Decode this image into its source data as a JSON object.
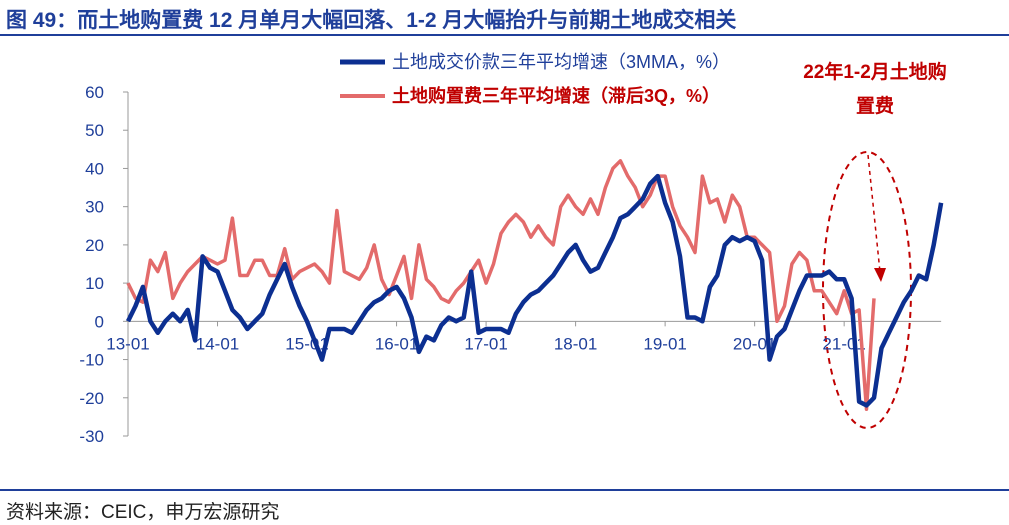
{
  "chart_data": {
    "type": "line",
    "title": "图 49：而土地购置费 12 月单月大幅回落、1-2 月大幅抬升与前期土地成交相关",
    "source": "资料来源：CEIC，申万宏源研究",
    "annotation": "22年1-2月土地购置费",
    "categories": [
      "13-01",
      null,
      null,
      null,
      null,
      null,
      null,
      null,
      null,
      null,
      null,
      null,
      "14-01",
      null,
      null,
      null,
      null,
      null,
      null,
      null,
      null,
      null,
      null,
      null,
      "15-01",
      null,
      null,
      null,
      null,
      null,
      null,
      null,
      null,
      null,
      null,
      null,
      "16-01",
      null,
      null,
      null,
      null,
      null,
      null,
      null,
      null,
      null,
      null,
      null,
      "17-01",
      null,
      null,
      null,
      null,
      null,
      null,
      null,
      null,
      null,
      null,
      null,
      "18-01",
      null,
      null,
      null,
      null,
      null,
      null,
      null,
      null,
      null,
      null,
      null,
      "19-01",
      null,
      null,
      null,
      null,
      null,
      null,
      null,
      null,
      null,
      null,
      null,
      "20-01",
      null,
      null,
      null,
      null,
      null,
      null,
      null,
      null,
      null,
      null,
      null,
      "21-01",
      null,
      null,
      null,
      null,
      null,
      null,
      null,
      null,
      null,
      null,
      null,
      null,
      null
    ],
    "series": [
      {
        "name": "土地成交价款三年平均增速（3MMA，%）",
        "color": "#0c2f91",
        "values": [
          0,
          4,
          9,
          0,
          -3,
          0,
          2,
          0,
          3,
          -5,
          17,
          14,
          13,
          8,
          3,
          1,
          -2,
          0,
          2,
          7,
          11,
          15,
          9,
          4,
          0,
          -5,
          -10,
          -2,
          -2,
          -2,
          -3,
          0,
          3,
          5,
          6,
          8,
          9,
          6,
          1,
          -8,
          -4,
          -5,
          -1,
          1,
          0,
          1,
          13,
          -3,
          -2,
          -2,
          -2,
          -3,
          2,
          5,
          7,
          8,
          10,
          12,
          15,
          18,
          20,
          16,
          13,
          14,
          18,
          22,
          27,
          28,
          30,
          32,
          36,
          38,
          31,
          26,
          17,
          1,
          1,
          0,
          9,
          12,
          20,
          22,
          21,
          22,
          21,
          16,
          -10,
          -4,
          -2,
          3,
          8,
          12,
          12,
          12,
          13,
          11,
          11,
          6,
          -21,
          -22,
          -20,
          -7,
          -3,
          1,
          5,
          8,
          12,
          11,
          20,
          31
        ]
      },
      {
        "name": "土地购置费三年平均增速（滞后3Q，%）",
        "color": "#e36b6b",
        "values": [
          10,
          6,
          5,
          16,
          13,
          18,
          6,
          10,
          13,
          15,
          17,
          16,
          15,
          16,
          27,
          12,
          12,
          16,
          16,
          12,
          12,
          19,
          11,
          13,
          14,
          15,
          13,
          10,
          29,
          13,
          12,
          11,
          14,
          20,
          11,
          7,
          12,
          17,
          6,
          20,
          11,
          9,
          6,
          5,
          8,
          10,
          13,
          16,
          10,
          15,
          23,
          26,
          28,
          26,
          22,
          25,
          22,
          20,
          30,
          33,
          30,
          28,
          32,
          28,
          35,
          40,
          42,
          38,
          35,
          30,
          33,
          38,
          38,
          30,
          25,
          22,
          18,
          38,
          31,
          32,
          26,
          33,
          30,
          22,
          22,
          20,
          18,
          0,
          4,
          15,
          18,
          16,
          8,
          8,
          5,
          2,
          8,
          2,
          3,
          -23,
          6,
          null,
          null,
          null,
          null,
          null,
          null,
          null,
          null,
          null
        ]
      }
    ],
    "ylim": [
      -30,
      60
    ],
    "yticks": [
      -30,
      -20,
      -10,
      0,
      10,
      20,
      30,
      40,
      50,
      60
    ]
  }
}
